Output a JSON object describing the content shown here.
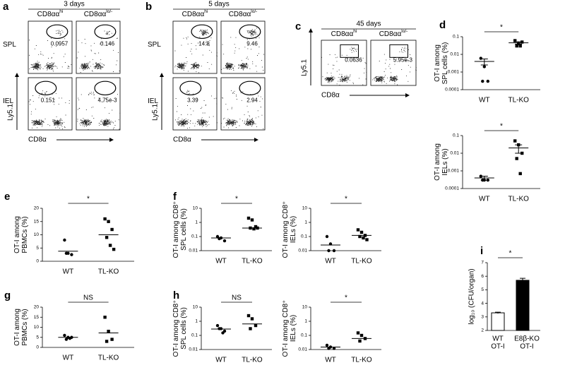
{
  "flow_panels": [
    {
      "letter": "a",
      "time": "3 days",
      "columns": [
        {
          "text": "CD8αα",
          "sup": "hi"
        },
        {
          "text": "CD8αα",
          "sup": "lo/-"
        }
      ],
      "rows": [
        {
          "label": "SPL",
          "gates": [
            "0.0957",
            "0.146"
          ]
        },
        {
          "label": "IEL",
          "gates": [
            "0.151",
            "4.75e-3"
          ]
        }
      ],
      "y_axis": "Ly5.1",
      "x_axis": "CD8α"
    },
    {
      "letter": "b",
      "time": "5 days",
      "columns": [
        {
          "text": "CD8αα",
          "sup": "hi"
        },
        {
          "text": "CD8αα",
          "sup": "lo/-"
        }
      ],
      "rows": [
        {
          "label": "SPL",
          "gates": [
            "14.8",
            "9.46"
          ]
        },
        {
          "label": "IEL",
          "gates": [
            "3.39",
            "2.94"
          ]
        }
      ],
      "y_axis": "Ly5.1",
      "x_axis": "CD8α"
    },
    {
      "letter": "c",
      "time": "45 days",
      "columns": [
        {
          "text": "CD8αα",
          "sup": "hi"
        },
        {
          "text": "CD8αα",
          "sup": "lo/-"
        }
      ],
      "rows": [
        {
          "gates": [
            "0.0636",
            "5.95e-3"
          ]
        }
      ],
      "y_axis": "Ly5.1",
      "x_axis": "CD8α"
    }
  ],
  "chart_data": [
    {
      "type": "dot",
      "letter": "d",
      "ylabel": [
        "OT-I among",
        "SPL cells (%)"
      ],
      "log": true,
      "ylim": [
        0.0001,
        0.1
      ],
      "yticks": [
        0.0001,
        0.001,
        0.01,
        0.1
      ],
      "categories": [
        "WT",
        "TL-KO"
      ],
      "groups": [
        {
          "values": [
            0.006,
            0.002,
            0.0003,
            0.0003
          ],
          "mean": 0.004,
          "sem": 0.0015
        },
        {
          "values": [
            0.06,
            0.04,
            0.05,
            0.03,
            0.03
          ],
          "mean": 0.045,
          "sem": 0.007
        }
      ],
      "significance": "*"
    },
    {
      "type": "dot",
      "ylabel": [
        "OT-I among",
        "IELs (%)"
      ],
      "log": true,
      "ylim": [
        0.0001,
        0.1
      ],
      "yticks": [
        0.0001,
        0.001,
        0.01,
        0.1
      ],
      "categories": [
        "WT",
        "TL-KO"
      ],
      "groups": [
        {
          "values": [
            0.0005,
            0.0003,
            0.0003,
            0.0003
          ],
          "mean": 0.0004,
          "sem": 0.0001
        },
        {
          "values": [
            0.05,
            0.03,
            0.01,
            0.005,
            0.0007
          ],
          "mean": 0.02,
          "sem": 0.01
        }
      ],
      "significance": "*"
    },
    {
      "type": "dot",
      "letter": "e",
      "ylabel": [
        "OT-I among",
        "PBMCs (%)"
      ],
      "log": false,
      "ylim": [
        0,
        20
      ],
      "yticks": [
        0,
        5,
        10,
        15,
        20
      ],
      "categories": [
        "WT",
        "TL-KO"
      ],
      "groups": [
        {
          "values": [
            8,
            3,
            2.5,
            3
          ],
          "mean": 3.8
        },
        {
          "values": [
            16,
            15,
            12,
            9,
            6,
            4.5
          ],
          "mean": 10
        }
      ],
      "significance": "*"
    },
    {
      "type": "dot",
      "letter": "f",
      "ylabel": [
        "OT-I  among  CD8⁺",
        "SPL cells (%)"
      ],
      "log": true,
      "ylim": [
        0.01,
        10
      ],
      "yticks": [
        0.01,
        0.1,
        1,
        10
      ],
      "categories": [
        "WT",
        "TL-KO"
      ],
      "groups": [
        {
          "values": [
            0.1,
            0.08,
            0.05,
            0.07
          ],
          "mean": 0.08
        },
        {
          "values": [
            2,
            1.5,
            0.5,
            0.4,
            0.35,
            0.4
          ],
          "mean": 0.4
        }
      ],
      "significance": "*"
    },
    {
      "type": "dot",
      "ylabel": [
        "OT-I  among  CD8⁺",
        "IELs (%)"
      ],
      "log": true,
      "ylim": [
        0.01,
        10
      ],
      "yticks": [
        0.01,
        0.1,
        1,
        10
      ],
      "categories": [
        "WT",
        "TL-KO"
      ],
      "groups": [
        {
          "values": [
            0.1,
            0.03,
            0.01,
            0.01
          ],
          "mean": 0.025
        },
        {
          "values": [
            0.3,
            0.2,
            0.12,
            0.1,
            0.08,
            0.06
          ],
          "mean": 0.12
        }
      ],
      "significance": "*"
    },
    {
      "type": "dot",
      "letter": "g",
      "ylabel": [
        "OT-I among",
        "PBMCs (%)"
      ],
      "log": false,
      "ylim": [
        0,
        20
      ],
      "yticks": [
        0,
        5,
        10,
        15,
        20
      ],
      "categories": [
        "WT",
        "TL-KO"
      ],
      "groups": [
        {
          "values": [
            6,
            5,
            5,
            4,
            4.5
          ],
          "mean": 5
        },
        {
          "values": [
            15,
            8,
            4,
            3
          ],
          "mean": 7.2
        }
      ],
      "significance": "NS"
    },
    {
      "type": "dot",
      "letter": "h",
      "ylabel": [
        "OT-I  among  CD8⁺",
        "SPL cells (%)"
      ],
      "log": true,
      "ylim": [
        0.01,
        10
      ],
      "yticks": [
        0.01,
        0.1,
        1,
        10
      ],
      "categories": [
        "WT",
        "TL-KO"
      ],
      "groups": [
        {
          "values": [
            0.5,
            0.3,
            0.2,
            0.3,
            0.15
          ],
          "mean": 0.28
        },
        {
          "values": [
            2.5,
            1.5,
            0.5,
            0.3
          ],
          "mean": 0.65
        }
      ],
      "significance": "NS"
    },
    {
      "type": "dot",
      "ylabel": [
        "OT-I  among  CD8⁺",
        "IELs (%)"
      ],
      "log": true,
      "ylim": [
        0.01,
        10
      ],
      "yticks": [
        0.01,
        0.1,
        1,
        10
      ],
      "categories": [
        "WT",
        "TL-KO"
      ],
      "groups": [
        {
          "values": [
            0.02,
            0.015,
            0.012,
            0.012
          ],
          "mean": 0.015
        },
        {
          "values": [
            0.15,
            0.1,
            0.06,
            0.04
          ],
          "mean": 0.06
        }
      ],
      "significance": "*"
    },
    {
      "type": "bar",
      "letter": "i",
      "ylabel": [
        "log₁₀ (CFU/organ)"
      ],
      "log": false,
      "ylim": [
        2,
        7
      ],
      "yticks": [
        2,
        3,
        4,
        5,
        6,
        7
      ],
      "categories": [
        [
          "WT",
          "OT-I"
        ],
        [
          "E8β-KO",
          "OT-I"
        ]
      ],
      "values": [
        3.3,
        5.7
      ],
      "errors": [
        0.05,
        0.15
      ],
      "colors": [
        "#ffffff",
        "#000000"
      ],
      "significance": "*"
    }
  ]
}
